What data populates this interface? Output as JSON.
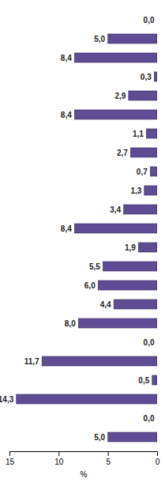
{
  "chart_data": {
    "type": "bar",
    "orientation": "horizontal",
    "categories": [
      null,
      null,
      null,
      null,
      null,
      null,
      null,
      null,
      null,
      null,
      null,
      null,
      null,
      null,
      null,
      null,
      null,
      null,
      null,
      null,
      null,
      null,
      null
    ],
    "values": [
      0.0,
      5.0,
      8.4,
      0.3,
      2.9,
      8.4,
      1.1,
      2.7,
      0.7,
      1.3,
      3.4,
      8.4,
      1.9,
      5.5,
      6.0,
      4.4,
      8.0,
      0.0,
      11.7,
      0.5,
      14.3,
      0.0,
      5.0
    ],
    "value_labels": [
      "0,0",
      "5,0",
      "8,4",
      "0,3",
      "2,9",
      "8,4",
      "1,1",
      "2,7",
      "0,7",
      "1,3",
      "3,4",
      "8,4",
      "1,9",
      "5,5",
      "6,0",
      "4,4",
      "8,0",
      "0,0",
      "11,7",
      "0,5",
      "14,3",
      "0,0",
      "5,0"
    ],
    "color": "#5e4c94",
    "xlabel": "%",
    "xlim": [
      15,
      0
    ],
    "xticks": [
      15,
      10,
      5,
      0
    ],
    "data_labels": true,
    "tick_labels": "x"
  }
}
